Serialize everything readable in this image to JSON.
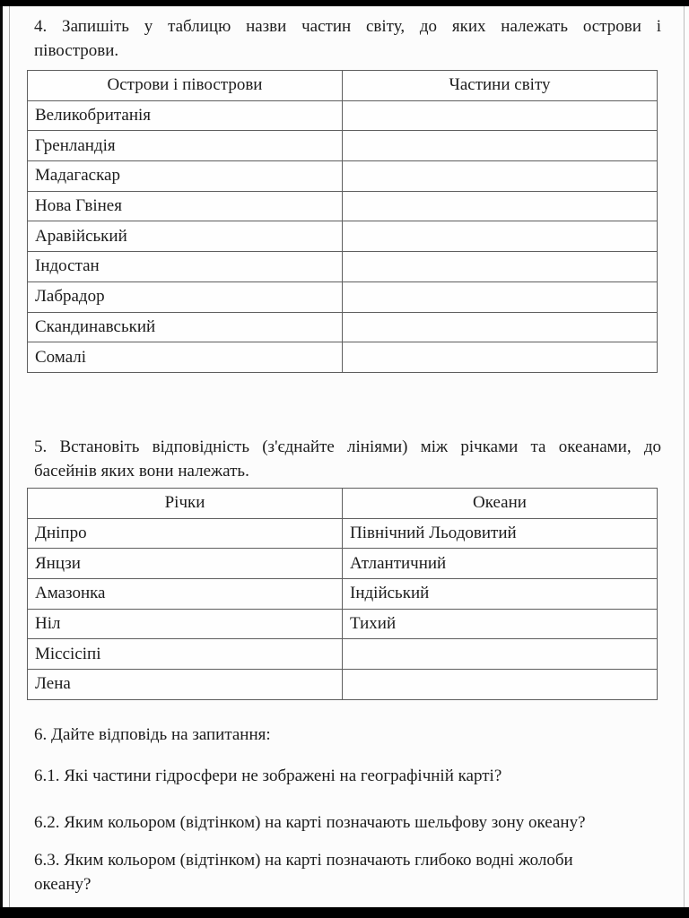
{
  "page": {
    "background": "#fcfcfc",
    "text_color": "#1c1c1c",
    "bar_color": "#000000"
  },
  "task4": {
    "prompt_lines": [
      "4. Запишіть у таблицю назви частин світу, до яких належать острови і",
      "півострови."
    ],
    "table": {
      "col1_header": "Острови і півострови",
      "col2_header": "Частини світу",
      "rows": [
        {
          "name": "Великобританія",
          "answer": ""
        },
        {
          "name": "Гренландія",
          "answer": ""
        },
        {
          "name": "Мадагаскар",
          "answer": ""
        },
        {
          "name": "Нова Гвінея",
          "answer": ""
        },
        {
          "name": "Аравійський",
          "answer": ""
        },
        {
          "name": "Індостан",
          "answer": ""
        },
        {
          "name": "Лабрадор",
          "answer": ""
        },
        {
          "name": "Скандинавський",
          "answer": ""
        },
        {
          "name": "Сомалі",
          "answer": ""
        }
      ]
    }
  },
  "task5": {
    "prompt_lines": [
      "5. Встановіть відповідність (з'єднайте лініями) між річками та океанами, до",
      "басейнів яких вони належать."
    ],
    "table": {
      "col1_header": "Річки",
      "col2_header": "Океани",
      "rows": [
        {
          "river": "Дніпро",
          "ocean": "Північний Льодовитий"
        },
        {
          "river": "Янцзи",
          "ocean": "Атлантичний"
        },
        {
          "river": "Амазонка",
          "ocean": "Індійський"
        },
        {
          "river": "Ніл",
          "ocean": "Тихий"
        },
        {
          "river": "Міссісіпі",
          "ocean": ""
        },
        {
          "river": "Лена",
          "ocean": ""
        }
      ]
    }
  },
  "task6": {
    "heading": "6. Дайте відповідь на запитання:",
    "q1": "6.1. Які частини гідросфери не зображені на географічній карті?",
    "q2": "6.2. Яким кольором (відтінком) на карті позначають шельфову зону океану?",
    "q3_lines": [
      "6.3. Яким кольором (відтінком) на карті позначають глибоко водні жолоби",
      "океану?"
    ]
  }
}
